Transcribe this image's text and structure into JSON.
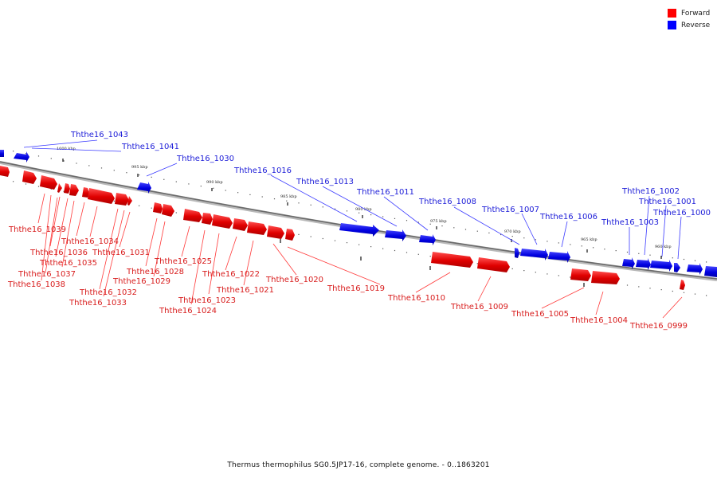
{
  "legend": {
    "forward_label": "Forward",
    "reverse_label": "Reverse",
    "forward_color": "#ff0000",
    "reverse_color": "#0000ff"
  },
  "caption": "Thermus thermophilus SG0.5JP17-16, complete genome. - 0..1863201",
  "track": {
    "tick_labels": [
      "1000 kbp",
      "995 kbp",
      "990 kbp",
      "985 kbp",
      "980 kbp",
      "975 kbp",
      "970 kbp",
      "965 kbp",
      "960 kbp"
    ]
  },
  "genes": {
    "reverse": [
      "Ththe16_1043",
      "Ththe16_1041",
      "Ththe16_1030",
      "Ththe16_1016",
      "Ththe16_1013",
      "Ththe16_1011",
      "Ththe16_1008",
      "Ththe16_1007",
      "Ththe16_1006",
      "Ththe16_1003",
      "Ththe16_1002",
      "Ththe16_1001",
      "Ththe16_1000"
    ],
    "forward": [
      "Ththe16_1039",
      "Ththe16_1034",
      "Ththe16_1036",
      "Ththe16_1031",
      "Ththe16_1035",
      "Ththe16_1037",
      "Ththe16_1038",
      "Ththe16_1032",
      "Ththe16_1033",
      "Ththe16_1025",
      "Ththe16_1028",
      "Ththe16_1029",
      "Ththe16_1022",
      "Ththe16_1021",
      "Ththe16_1023",
      "Ththe16_1024",
      "Ththe16_1020",
      "Ththe16_1019",
      "Ththe16_1010",
      "Ththe16_1009",
      "Ththe16_1005",
      "Ththe16_1004",
      "Ththe16_0999"
    ]
  }
}
